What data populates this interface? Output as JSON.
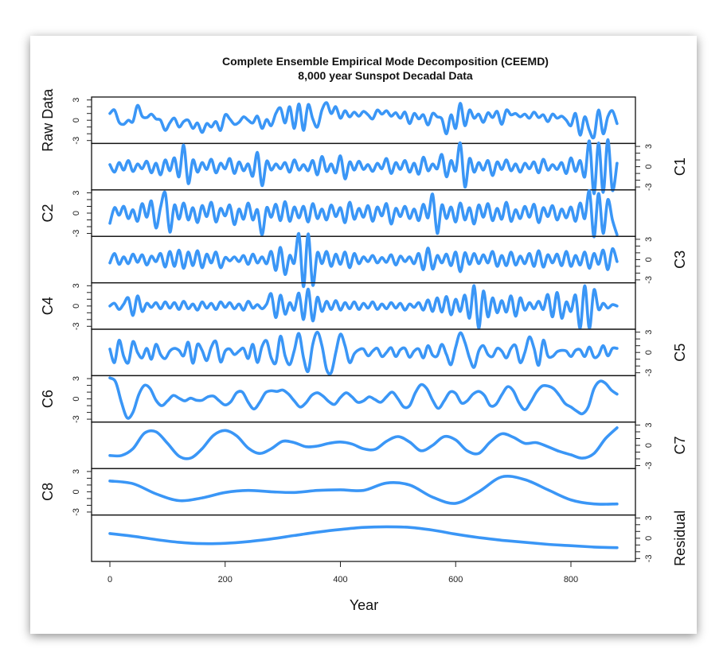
{
  "chart_data": {
    "type": "line",
    "title": "Complete Ensemble Empirical Mode Decomposition (CEEMD)",
    "subtitle": "8,000 year Sunspot Decadal Data",
    "xlabel": "Year",
    "xlim": [
      0,
      880
    ],
    "x_ticks": [
      "0",
      "200",
      "400",
      "600",
      "800"
    ],
    "x_tick_values": [
      0,
      200,
      400,
      600,
      800
    ],
    "panel_ylim": [
      -3,
      3
    ],
    "y_tick_labels": [
      "3",
      "0",
      "-3"
    ],
    "color": "#3a96f6",
    "series": [
      {
        "name": "Raw Data",
        "axis_side": "left",
        "x_step": 8,
        "values": [
          1.0,
          1.5,
          -0.3,
          -0.6,
          0.0,
          -0.2,
          2.2,
          0.6,
          0.4,
          0.9,
          0.2,
          0.0,
          -1.5,
          -0.4,
          0.3,
          -1.0,
          -0.2,
          0.0,
          -1.2,
          -0.4,
          -1.8,
          -0.5,
          -1.0,
          -0.2,
          -1.5,
          0.8,
          0.2,
          -0.6,
          -0.3,
          0.5,
          0.0,
          -0.4,
          0.6,
          -1.2,
          0.1,
          -0.8,
          1.0,
          1.8,
          -0.4,
          2.0,
          -1.2,
          2.4,
          -1.5,
          2.3,
          0.2,
          -1.0,
          1.5,
          2.6,
          1.0,
          2.0,
          0.3,
          1.4,
          0.5,
          1.2,
          0.6,
          1.3,
          0.8,
          0.2,
          1.5,
          0.9,
          1.4,
          0.6,
          1.1,
          0.3,
          1.2,
          -0.5,
          1.0,
          0.2,
          0.8,
          -0.7,
          1.0,
          0.5,
          0.2,
          -2.0,
          0.8,
          -1.2,
          2.5,
          -0.8,
          1.5,
          0.3,
          0.9,
          -0.3,
          1.1,
          0.4,
          1.3,
          -0.6,
          1.5,
          0.8,
          1.0,
          0.5,
          0.9,
          0.3,
          1.2,
          0.4,
          0.8,
          -0.2,
          0.9,
          0.3,
          0.6,
          0.0,
          -0.8,
          1.0,
          -2.2,
          0.5,
          -1.5,
          -2.5,
          1.5,
          -2.0,
          0.5,
          1.4,
          -0.5
        ]
      },
      {
        "name": "C1",
        "axis_side": "right",
        "x_step": 8,
        "values": [
          0.3,
          -0.8,
          0.6,
          -0.5,
          0.9,
          -0.7,
          0.4,
          -0.3,
          0.8,
          -0.9,
          0.5,
          -1.2,
          1.0,
          -0.6,
          1.3,
          -1.5,
          3.2,
          -2.5,
          1.0,
          -0.8,
          0.6,
          -0.4,
          1.1,
          -0.9,
          0.5,
          -0.3,
          1.2,
          -1.0,
          0.7,
          -0.6,
          0.4,
          -1.4,
          2.1,
          -2.8,
          0.8,
          -0.5,
          0.4,
          -0.3,
          0.6,
          -0.8,
          1.0,
          -0.5,
          0.3,
          -0.6,
          0.9,
          -1.2,
          1.5,
          -0.7,
          0.4,
          -0.9,
          1.6,
          -1.8,
          0.7,
          -0.5,
          0.8,
          -0.4,
          0.3,
          -0.7,
          0.5,
          -0.3,
          1.2,
          -1.0,
          0.6,
          -0.4,
          0.9,
          -0.8,
          0.5,
          -1.1,
          1.4,
          -0.6,
          0.4,
          -0.3,
          1.8,
          -1.5,
          0.9,
          -0.6,
          3.5,
          -3.0,
          1.2,
          -0.8,
          0.6,
          -0.5,
          0.9,
          -1.3,
          0.7,
          -0.4,
          1.0,
          -0.6,
          0.4,
          -0.8,
          0.5,
          -0.3,
          0.7,
          -0.9,
          1.1,
          -0.5,
          0.3,
          -0.4,
          0.6,
          -1.0,
          1.3,
          -0.7,
          0.9,
          -1.5,
          3.8,
          -4.0,
          3.5,
          -3.8,
          4.0,
          -3.5,
          0.5
        ]
      },
      {
        "name": "C2",
        "axis_side": "left",
        "x_step": 8,
        "values": [
          -1.5,
          0.8,
          -0.3,
          1.0,
          -0.8,
          0.5,
          -1.2,
          1.4,
          -0.6,
          1.8,
          -2.2,
          0.9,
          3.0,
          -2.8,
          1.2,
          -0.9,
          1.5,
          -1.0,
          0.8,
          -1.4,
          1.1,
          -0.5,
          1.6,
          -1.3,
          0.7,
          -0.4,
          1.2,
          -1.7,
          0.6,
          -0.9,
          1.5,
          -1.0,
          0.5,
          -3.2,
          0.8,
          -0.6,
          1.3,
          -1.1,
          1.7,
          -1.2,
          0.9,
          -0.7,
          1.0,
          -1.3,
          1.4,
          -0.8,
          0.6,
          -1.0,
          1.2,
          -0.5,
          0.8,
          -1.4,
          1.6,
          -0.9,
          0.7,
          -0.6,
          1.1,
          -1.2,
          0.9,
          -0.4,
          1.4,
          -1.6,
          0.7,
          -0.5,
          1.0,
          -0.8,
          0.6,
          -1.1,
          1.3,
          -0.7,
          2.8,
          -3.0,
          1.2,
          -0.8,
          0.9,
          -1.3,
          1.5,
          -1.0,
          0.8,
          -1.6,
          1.2,
          -0.6,
          1.4,
          -1.1,
          0.7,
          -0.9,
          1.6,
          -1.2,
          0.5,
          -0.8,
          1.0,
          -0.6,
          1.3,
          -1.4,
          0.8,
          -0.5,
          1.1,
          -1.0,
          0.6,
          -0.7,
          0.9,
          -1.2,
          1.5,
          -0.8,
          3.3,
          -3.5,
          2.9,
          -3.0,
          2.0,
          -1.0,
          -3.2
        ]
      },
      {
        "name": "C3",
        "axis_side": "right",
        "x_step": 8,
        "values": [
          -0.5,
          0.9,
          -0.7,
          0.4,
          -0.6,
          0.8,
          -0.4,
          0.7,
          -0.8,
          0.5,
          -0.3,
          0.9,
          -1.1,
          1.2,
          -1.0,
          1.4,
          -1.3,
          1.1,
          -0.9,
          1.3,
          -1.2,
          0.8,
          -0.5,
          1.1,
          -1.2,
          0.3,
          -0.2,
          0.4,
          -0.3,
          0.6,
          -0.7,
          0.8,
          -0.5,
          0.4,
          -0.6,
          1.2,
          -1.6,
          1.8,
          -2.2,
          0.6,
          -0.5,
          3.8,
          -4.0,
          3.8,
          -3.8,
          1.0,
          -0.6,
          1.2,
          -1.0,
          0.8,
          -0.7,
          1.1,
          -1.2,
          0.9,
          -0.6,
          0.4,
          -0.3,
          0.6,
          -0.5,
          0.3,
          -0.4,
          0.7,
          -0.8,
          0.5,
          -0.3,
          0.4,
          -0.6,
          0.9,
          -1.5,
          1.7,
          -1.4,
          0.6,
          -0.5,
          0.8,
          -0.9,
          1.1,
          -1.8,
          1.0,
          -0.7,
          0.9,
          -0.6,
          0.7,
          -0.5,
          1.2,
          -1.0,
          0.6,
          -0.9,
          1.1,
          -0.8,
          0.5,
          -0.6,
          0.9,
          -1.0,
          1.3,
          -1.1,
          0.7,
          -0.5,
          0.8,
          -0.9,
          1.2,
          -1.0,
          0.6,
          -0.8,
          1.1,
          -1.3,
          0.9,
          -0.7,
          1.4,
          -1.5,
          1.6,
          -0.3
        ]
      },
      {
        "name": "C4",
        "axis_side": "left",
        "x_step": 8,
        "values": [
          0.0,
          0.4,
          -0.5,
          0.3,
          1.2,
          -1.4,
          1.5,
          -0.8,
          0.4,
          -0.2,
          0.5,
          -0.4,
          0.6,
          -0.3,
          0.5,
          -0.5,
          0.7,
          -0.4,
          0.3,
          -0.6,
          0.6,
          -0.3,
          0.4,
          -0.5,
          0.6,
          -0.2,
          0.5,
          -0.4,
          0.3,
          -0.6,
          0.7,
          -0.3,
          0.2,
          -0.4,
          0.3,
          1.8,
          -1.7,
          1.6,
          -1.2,
          0.5,
          -0.6,
          1.9,
          -2.0,
          2.5,
          -2.2,
          1.3,
          -0.8,
          0.7,
          -0.5,
          0.8,
          -0.6,
          0.5,
          -0.4,
          0.6,
          -0.5,
          0.4,
          -0.3,
          0.6,
          -0.5,
          0.3,
          -0.4,
          0.5,
          -0.3,
          0.4,
          -0.6,
          0.3,
          -0.2,
          0.5,
          -0.6,
          0.9,
          -0.8,
          1.2,
          -0.9,
          1.4,
          -1.3,
          1.0,
          -0.8,
          1.6,
          -1.8,
          3.0,
          -3.3,
          2.2,
          -1.6,
          1.2,
          -1.0,
          0.8,
          -0.9,
          1.5,
          -1.5,
          1.2,
          -0.6,
          0.5,
          -0.4,
          0.7,
          -0.5,
          1.7,
          -1.6,
          2.0,
          -1.8,
          0.6,
          -0.8,
          1.6,
          -3.3,
          3.0,
          -3.3,
          2.4,
          -0.5,
          0.4,
          -0.3,
          0.2,
          0.0
        ]
      },
      {
        "name": "C5",
        "axis_side": "right",
        "x_step": 8,
        "values": [
          0.5,
          -1.5,
          1.8,
          -0.6,
          -1.5,
          1.6,
          0.0,
          -0.8,
          0.6,
          -1.0,
          1.2,
          -0.3,
          -0.9,
          0.2,
          0.6,
          0.3,
          -0.5,
          1.5,
          -1.6,
          1.2,
          0.3,
          -1.2,
          0.8,
          1.6,
          -1.4,
          0.2,
          0.5,
          -0.3,
          0.2,
          0.6,
          -0.9,
          1.2,
          -1.5,
          0.9,
          1.7,
          -0.8,
          -1.5,
          2.4,
          -0.5,
          -1.8,
          0.3,
          2.8,
          -0.8,
          -2.8,
          1.2,
          3.0,
          1.0,
          -2.5,
          -3.0,
          0.0,
          2.7,
          1.0,
          -1.5,
          -0.2,
          0.4,
          0.5,
          -0.5,
          0.2,
          0.6,
          -0.6,
          0.0,
          0.7,
          -0.6,
          0.4,
          0.6,
          -0.7,
          0.2,
          0.5,
          -0.8,
          1.0,
          -0.4,
          -0.5,
          1.2,
          -0.3,
          -1.8,
          0.8,
          2.9,
          1.5,
          -0.8,
          -2.2,
          0.2,
          1.0,
          -0.3,
          -0.6,
          0.6,
          0.2,
          -0.8,
          0.6,
          1.0,
          -1.5,
          0.0,
          2.3,
          0.6,
          -1.9,
          1.8,
          -0.5,
          -0.6,
          0.1,
          0.3,
          0.2,
          -0.6,
          0.3,
          0.4,
          -0.6,
          0.8,
          -0.7,
          -0.4,
          1.0,
          -0.5,
          0.6,
          0.6
        ]
      },
      {
        "name": "C6",
        "axis_side": "left",
        "x_step": 10,
        "values": [
          3.1,
          2.5,
          -0.5,
          -2.8,
          -2.0,
          0.6,
          2.0,
          1.5,
          -0.2,
          -1.0,
          -0.3,
          0.5,
          0.1,
          -0.3,
          0.1,
          -0.2,
          -0.2,
          0.3,
          0.4,
          -0.3,
          -0.9,
          -0.4,
          0.9,
          1.0,
          -0.5,
          -1.5,
          -0.5,
          0.9,
          1.2,
          1.1,
          1.3,
          0.7,
          -0.3,
          -1.2,
          -0.6,
          0.5,
          0.9,
          0.4,
          -0.4,
          -0.8,
          0.2,
          0.9,
          0.3,
          -0.5,
          -0.3,
          0.3,
          -0.1,
          -0.5,
          0.3,
          1.0,
          0.0,
          -1.2,
          -1.0,
          0.9,
          2.1,
          1.5,
          -0.2,
          -1.4,
          -0.3,
          1.0,
          0.8,
          -0.6,
          -0.3,
          0.7,
          1.1,
          0.5,
          -1.0,
          -0.8,
          0.6,
          1.8,
          1.2,
          -0.6,
          -1.6,
          -0.5,
          1.0,
          1.9,
          1.9,
          1.5,
          0.5,
          -0.7,
          -1.2,
          -1.8,
          -2.2,
          -1.2,
          1.5,
          2.6,
          2.3,
          1.3,
          0.7
        ]
      },
      {
        "name": "C7",
        "axis_side": "right",
        "x_step": 20,
        "values": [
          -1.5,
          -1.5,
          -0.5,
          1.8,
          2.0,
          0.3,
          -1.6,
          -1.9,
          -0.5,
          1.5,
          2.2,
          1.4,
          -0.4,
          -1.2,
          -0.5,
          0.6,
          0.4,
          -0.2,
          -0.1,
          0.3,
          0.5,
          0.2,
          -0.5,
          -0.6,
          0.6,
          1.3,
          0.5,
          -0.8,
          0.0,
          1.3,
          0.8,
          -0.8,
          -1.2,
          0.5,
          1.7,
          1.2,
          0.3,
          0.4,
          -0.2,
          -0.9,
          -1.4,
          -1.9,
          -1.2,
          1.0,
          2.6
        ]
      },
      {
        "name": "C8",
        "axis_side": "left",
        "x_step": 40,
        "values": [
          1.6,
          1.2,
          -0.3,
          -1.3,
          -0.9,
          -0.1,
          0.2,
          0.0,
          -0.1,
          0.2,
          0.3,
          0.2,
          1.3,
          1.0,
          -0.8,
          -1.7,
          0.0,
          2.2,
          1.8,
          0.3,
          -1.2,
          -1.8,
          -1.8
        ]
      },
      {
        "name": "Residual",
        "axis_side": "right",
        "x_step": 40,
        "values": [
          0.7,
          0.3,
          -0.2,
          -0.6,
          -0.8,
          -0.75,
          -0.5,
          -0.1,
          0.4,
          0.9,
          1.3,
          1.6,
          1.7,
          1.6,
          1.2,
          0.6,
          0.1,
          -0.3,
          -0.6,
          -0.9,
          -1.1,
          -1.3,
          -1.4
        ]
      }
    ]
  }
}
